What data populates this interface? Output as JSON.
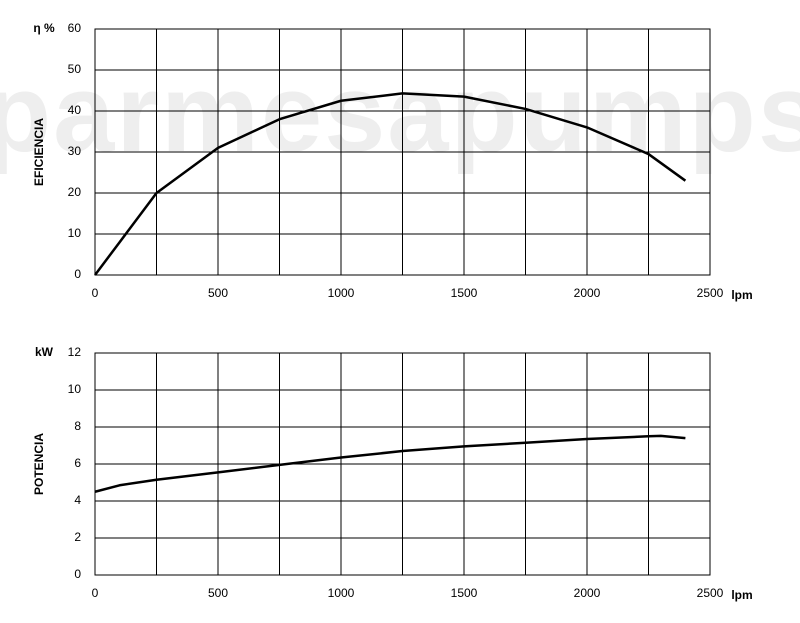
{
  "chart_data": [
    {
      "type": "line",
      "ylabel": "EFICIENCIA",
      "yunit": "η %",
      "xunit": "lpm",
      "watermark": "parmesapumps",
      "x": [
        0,
        100,
        250,
        500,
        750,
        1000,
        1250,
        1500,
        1750,
        2000,
        2250,
        2400
      ],
      "series": [
        {
          "name": "EFICIENCIA",
          "color": "#000000",
          "values": [
            0,
            8,
            20,
            31,
            38,
            42.5,
            44.3,
            43.5,
            40.5,
            36,
            29.5,
            23
          ]
        }
      ],
      "xlim": [
        0,
        2500
      ],
      "xticks": [
        0,
        500,
        1000,
        1500,
        2000,
        2500
      ],
      "xgrid": [
        250,
        750,
        1250,
        1750,
        2250
      ],
      "ylim": [
        0,
        60
      ],
      "yticks": [
        0,
        10,
        20,
        30,
        40,
        50,
        60
      ],
      "grid": true
    },
    {
      "type": "line",
      "ylabel": "POTENCIA",
      "yunit": "kW",
      "xunit": "lpm",
      "x": [
        0,
        100,
        250,
        500,
        750,
        1000,
        1250,
        1500,
        1750,
        2000,
        2250,
        2300,
        2400
      ],
      "series": [
        {
          "name": "POTENCIA",
          "color": "#000000",
          "values": [
            4.5,
            4.85,
            5.15,
            5.55,
            5.95,
            6.35,
            6.7,
            6.95,
            7.15,
            7.35,
            7.5,
            7.52,
            7.4
          ]
        }
      ],
      "xlim": [
        0,
        2500
      ],
      "xticks": [
        0,
        500,
        1000,
        1500,
        2000,
        2500
      ],
      "xgrid": [
        250,
        750,
        1250,
        1750,
        2250
      ],
      "ylim": [
        0,
        12
      ],
      "yticks": [
        0,
        2,
        4,
        6,
        8,
        10,
        12
      ],
      "grid": true
    }
  ]
}
